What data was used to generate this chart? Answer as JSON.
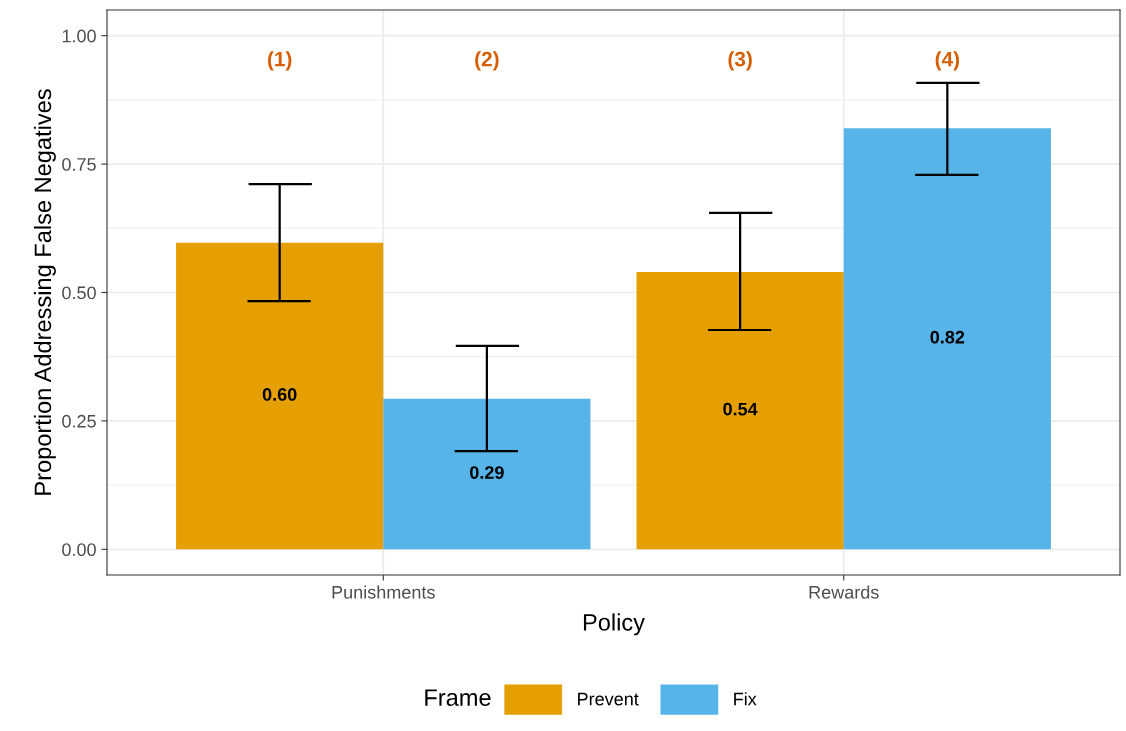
{
  "chart_data": {
    "type": "bar",
    "xlabel": "Policy",
    "ylabel": "Proportion Addressing False Negatives",
    "legend_title": "Frame",
    "categories": [
      "Punishments",
      "Rewards"
    ],
    "series": [
      {
        "name": "Prevent",
        "color": "#e69f00",
        "values": [
          0.597,
          0.54
        ],
        "value_labels": [
          "0.60",
          "0.54"
        ],
        "errors": [
          [
            0.483,
            0.711
          ],
          [
            0.427,
            0.655
          ]
        ]
      },
      {
        "name": "Fix",
        "color": "#56b4e9",
        "values": [
          0.293,
          0.82
        ],
        "value_labels": [
          "0.29",
          "0.82"
        ],
        "errors": [
          [
            0.191,
            0.396
          ],
          [
            0.729,
            0.908
          ]
        ]
      }
    ],
    "ylim": [
      -0.05,
      1.05
    ],
    "yticks": [
      {
        "value": 0,
        "label": "0.00"
      },
      {
        "value": 0.25,
        "label": "0.25"
      },
      {
        "value": 0.5,
        "label": "0.50"
      },
      {
        "value": 0.75,
        "label": "0.75"
      },
      {
        "value": 1,
        "label": "1.00"
      }
    ],
    "annotations": [
      "(1)",
      "(2)",
      "(3)",
      "(4)"
    ],
    "grid": true,
    "legend": "bottom"
  }
}
